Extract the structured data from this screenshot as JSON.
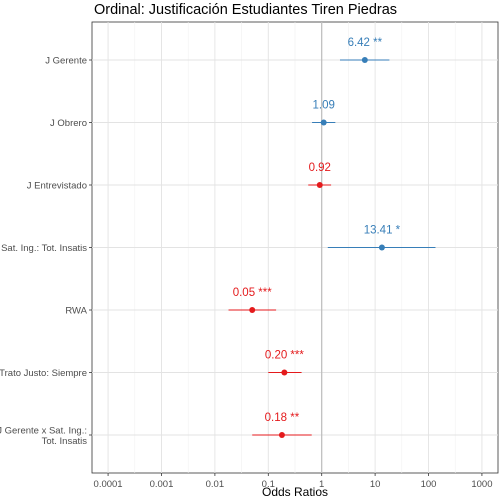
{
  "chart_data": {
    "type": "forest",
    "title": "Ordinal: Justificación Estudiantes Tiren Piedras",
    "xlabel": "Odds Ratios",
    "ylabel": "",
    "x_scale": "log10",
    "xlim": [
      5e-05,
      2000
    ],
    "reference_line": 1,
    "grid": true,
    "x_ticks": [
      {
        "value": 0.0001,
        "label": "0.0001"
      },
      {
        "value": 0.001,
        "label": "0.001"
      },
      {
        "value": 0.01,
        "label": "0.01"
      },
      {
        "value": 0.1,
        "label": "0.1"
      },
      {
        "value": 1,
        "label": "1"
      },
      {
        "value": 10,
        "label": "10"
      },
      {
        "value": 100,
        "label": "100"
      },
      {
        "value": 1000,
        "label": "1000"
      }
    ],
    "colors": {
      "positive": "#377EB8",
      "negative": "#E41A1C"
    },
    "rows": [
      {
        "term": [
          "J Gerente"
        ],
        "estimate": 6.42,
        "low": 2.2,
        "high": 18.5,
        "label": "6.42 **",
        "direction": "positive"
      },
      {
        "term": [
          "J Obrero"
        ],
        "estimate": 1.09,
        "low": 0.66,
        "high": 1.8,
        "label": "1.09",
        "direction": "positive"
      },
      {
        "term": [
          "J Entrevistado"
        ],
        "estimate": 0.92,
        "low": 0.56,
        "high": 1.5,
        "label": "0.92",
        "direction": "negative"
      },
      {
        "term": [
          "Sat. Ing.: Tot. Insatis"
        ],
        "estimate": 13.41,
        "low": 1.3,
        "high": 135,
        "label": "13.41 *",
        "direction": "positive"
      },
      {
        "term": [
          "RWA"
        ],
        "estimate": 0.05,
        "low": 0.018,
        "high": 0.14,
        "label": "0.05 ***",
        "direction": "negative"
      },
      {
        "term": [
          "Trato Justo: Siempre"
        ],
        "estimate": 0.2,
        "low": 0.1,
        "high": 0.42,
        "label": "0.20 ***",
        "direction": "negative"
      },
      {
        "term": [
          "J Gerente x Sat. Ing.:",
          "Tot. Insatis"
        ],
        "estimate": 0.18,
        "low": 0.05,
        "high": 0.65,
        "label": "0.18 **",
        "direction": "negative"
      }
    ]
  }
}
